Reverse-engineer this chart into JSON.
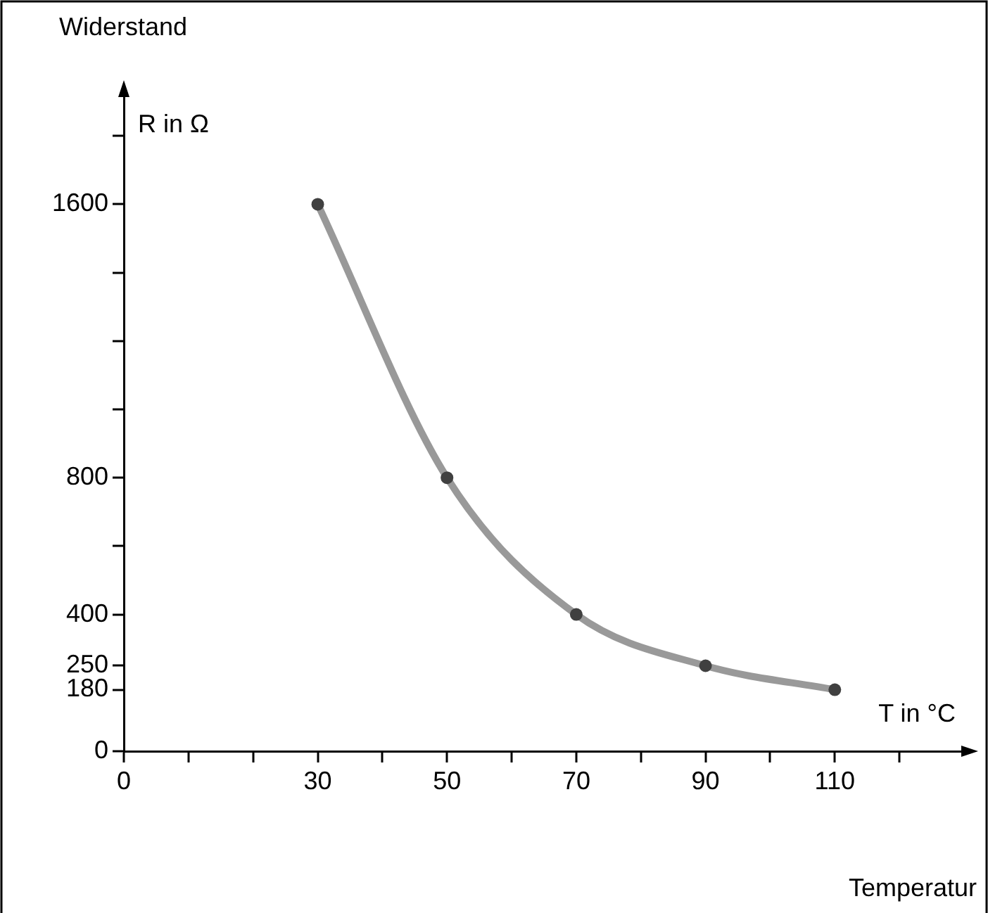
{
  "chart_data": {
    "type": "line",
    "xlabel": "T in °C",
    "ylabel": "R in Ω",
    "annotations": [
      "Widerstand",
      "Temperatur"
    ],
    "x": [
      30,
      50,
      70,
      90,
      110
    ],
    "series": [
      {
        "color": "#999999",
        "values": [
          1600,
          800,
          400,
          250,
          180
        ]
      }
    ],
    "marker": "circle",
    "line_style": "solid",
    "grid": false,
    "legend": false,
    "xlim": [
      0,
      130
    ],
    "xticks": [
      0,
      {
        "value": 10,
        "label": null
      },
      {
        "value": 20,
        "label": null
      },
      30,
      {
        "value": 40,
        "label": null
      },
      50,
      {
        "value": 60,
        "label": null
      },
      70,
      {
        "value": 80,
        "label": null
      },
      90,
      {
        "value": 100,
        "label": null
      },
      110,
      {
        "value": 120,
        "label": null
      }
    ],
    "ylim": [
      0,
      1930
    ],
    "yticks": [
      0,
      180,
      250,
      400,
      {
        "value": 600,
        "label": null
      },
      800,
      {
        "value": 1000,
        "label": null
      },
      {
        "value": 1200,
        "label": null
      },
      {
        "value": 1400,
        "label": null
      },
      1600,
      {
        "value": 1800,
        "label": null
      }
    ]
  }
}
